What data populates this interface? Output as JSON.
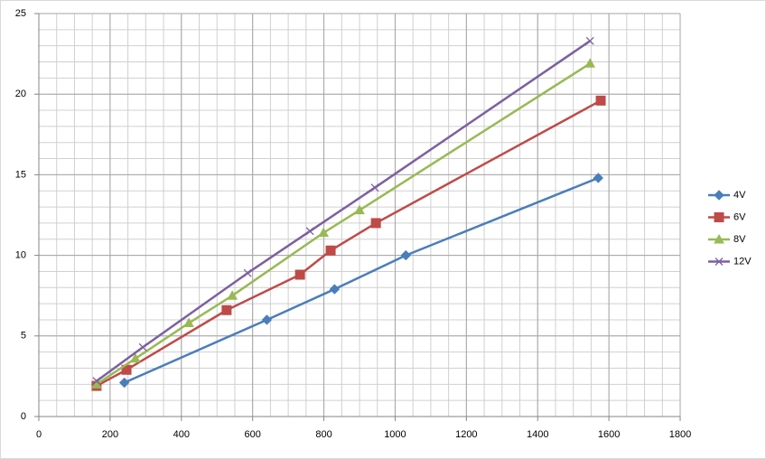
{
  "chart_data": {
    "type": "line",
    "xlim": [
      0,
      1800
    ],
    "xticks": [
      0,
      200,
      400,
      600,
      800,
      1000,
      1200,
      1400,
      1600,
      1800
    ],
    "ylim": [
      0,
      25
    ],
    "yticks": [
      0,
      5,
      10,
      15,
      20,
      25
    ],
    "grid": true,
    "minor_grid": {
      "x": 50,
      "y": 1
    },
    "legend": "right",
    "series": [
      {
        "name": "4V",
        "color": "#4a7ebb",
        "marker": "diamond",
        "x": [
          240,
          640,
          830,
          1030,
          1570
        ],
        "values": [
          2.1,
          6.0,
          7.9,
          10.0,
          14.8
        ]
      },
      {
        "name": "6V",
        "color": "#be4b48",
        "marker": "square",
        "x": [
          162,
          246,
          527,
          733,
          819,
          946,
          1577
        ],
        "values": [
          1.9,
          2.9,
          6.6,
          8.8,
          10.3,
          12.0,
          19.6
        ]
      },
      {
        "name": "8V",
        "color": "#98b954",
        "marker": "triangle",
        "x": [
          162,
          271,
          421,
          543,
          799,
          900,
          1547
        ],
        "values": [
          2.0,
          3.6,
          5.8,
          7.5,
          11.4,
          12.8,
          21.9
        ]
      },
      {
        "name": "12V",
        "color": "#7d60a0",
        "marker": "cross",
        "x": [
          162,
          292,
          586,
          761,
          943,
          1547
        ],
        "values": [
          2.2,
          4.3,
          8.9,
          11.5,
          14.2,
          23.3
        ]
      }
    ]
  }
}
